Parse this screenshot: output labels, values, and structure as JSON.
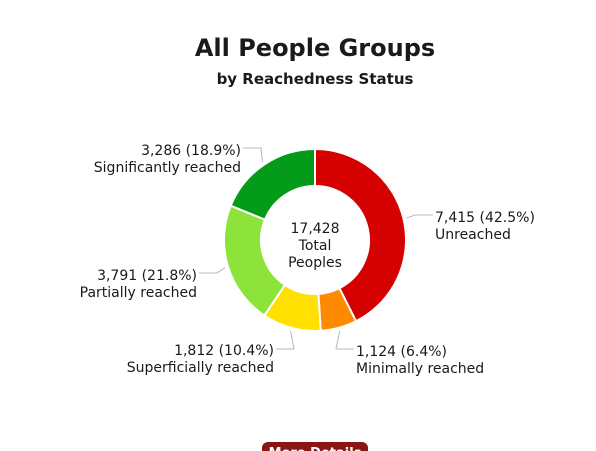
{
  "chart_data": {
    "type": "pie",
    "title": "All People Groups",
    "subtitle": "by Reachedness Status",
    "center_label": [
      "17,428",
      "Total",
      "Peoples"
    ],
    "total": 17428,
    "slices": [
      {
        "name": "Unreached",
        "value": 7415,
        "label": "7,415 (42.5%)",
        "color": "#d50000"
      },
      {
        "name": "Minimally reached",
        "value": 1124,
        "label": "1,124 (6.4%)",
        "color": "#ff8a00"
      },
      {
        "name": "Superficially reached",
        "value": 1812,
        "label": "1,812 (10.4%)",
        "color": "#ffe000"
      },
      {
        "name": "Partially reached",
        "value": 3791,
        "label": "3,791 (21.8%)",
        "color": "#8ee33a"
      },
      {
        "name": "Significantly reached",
        "value": 3286,
        "label": "3,286 (18.9%)",
        "color": "#049b1a"
      }
    ]
  },
  "button": {
    "label": "More Details"
  }
}
